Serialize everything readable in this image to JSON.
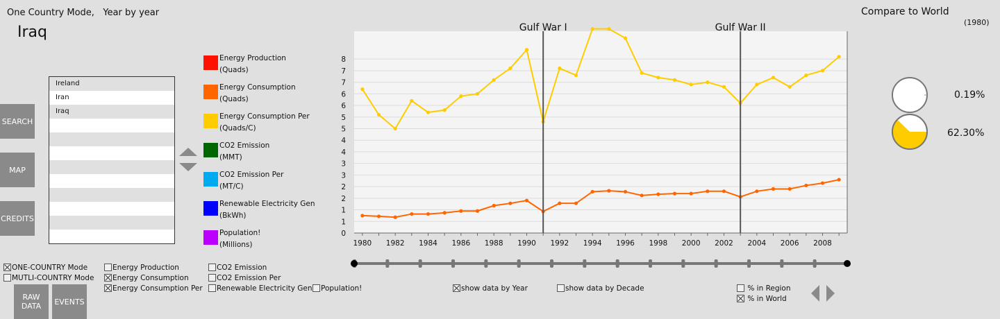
{
  "header": {
    "mode": "One Country Mode,",
    "timescale": "Year by year",
    "country": "Iraq"
  },
  "nav": {
    "search": "SEARCH",
    "map": "MAP",
    "credits": "CREDITS",
    "raw_data": "RAW DATA",
    "events": "EVENTS"
  },
  "country_list": [
    "Ireland",
    "Iran",
    "Iraq",
    "",
    "",
    "",
    "",
    "",
    "",
    "",
    "",
    ""
  ],
  "legend": [
    {
      "label": "Energy Production",
      "unit": "(Quads)",
      "color": "#ff1100"
    },
    {
      "label": "Energy Consumption",
      "unit": "(Quads)",
      "color": "#ff6600"
    },
    {
      "label": "Energy Consumption Per",
      "unit": "(Quads/C)",
      "color": "#ffcc00"
    },
    {
      "label": "CO2 Emission",
      "unit": "(MMT)",
      "color": "#006600"
    },
    {
      "label": "CO2 Emission Per",
      "unit": "(MT/C)",
      "color": "#00aaee"
    },
    {
      "label": "Renewable Electricity Gen",
      "unit": "(BkWh)",
      "color": "#0000ff"
    },
    {
      "label": "Population!",
      "unit": "(Millions)",
      "color": "#bb00ff"
    }
  ],
  "events": [
    "Gulf War I",
    "Gulf War II"
  ],
  "chart_data": {
    "type": "line",
    "x": [
      1980,
      1981,
      1982,
      1983,
      1984,
      1985,
      1986,
      1987,
      1988,
      1989,
      1990,
      1991,
      1992,
      1993,
      1994,
      1995,
      1996,
      1997,
      1998,
      1999,
      2000,
      2001,
      2002,
      2003,
      2004,
      2005,
      2006,
      2007,
      2008,
      2009
    ],
    "x_tick_labels": [
      "1980",
      "1982",
      "1984",
      "1986",
      "1988",
      "1990",
      "1992",
      "1994",
      "1996",
      "1998",
      "2000",
      "2002",
      "2004",
      "2006",
      "2008"
    ],
    "y_tick_labels": [
      "0",
      "1",
      "1",
      "2",
      "2",
      "3",
      "3",
      "4",
      "4",
      "5",
      "5",
      "6",
      "6",
      "7",
      "7",
      "8"
    ],
    "xlim": [
      1979.5,
      2009.5
    ],
    "ylim": [
      0,
      8.7
    ],
    "grid": true,
    "series": [
      {
        "name": "Energy Consumption Per",
        "color": "#ffcc00",
        "values": [
          6.2,
          5.1,
          4.5,
          5.7,
          5.2,
          5.3,
          5.9,
          6.0,
          6.6,
          7.1,
          7.9,
          4.8,
          7.1,
          6.8,
          8.8,
          8.8,
          8.4,
          6.9,
          6.7,
          6.6,
          6.4,
          6.5,
          6.3,
          5.6,
          6.4,
          6.7,
          6.3,
          6.8,
          7.0,
          7.6
        ]
      },
      {
        "name": "Energy Consumption",
        "color": "#ff6600",
        "values": [
          0.75,
          0.72,
          0.68,
          0.82,
          0.82,
          0.87,
          0.95,
          0.95,
          1.18,
          1.28,
          1.4,
          0.93,
          1.28,
          1.28,
          1.78,
          1.82,
          1.78,
          1.62,
          1.67,
          1.7,
          1.7,
          1.8,
          1.8,
          1.56,
          1.8,
          1.9,
          1.9,
          2.05,
          2.15,
          2.3
        ]
      }
    ],
    "event_markers": [
      {
        "label": "Gulf War I",
        "x": 1991
      },
      {
        "label": "Gulf War II",
        "x": 2003
      }
    ]
  },
  "options": {
    "one_country": "ONE-COUNTRY Mode",
    "multi_country": "MUTLI-COUNTRY Mode",
    "energy_production": "Energy Production",
    "energy_consumption": "Energy Consumption",
    "energy_consumption_per": "Energy Consumption Per",
    "co2_emission": "CO2 Emission",
    "co2_emission_per": "CO2 Emission Per",
    "renewable": "Renewable Electricity Gen",
    "population": "Population!",
    "by_year": "show data by Year",
    "by_decade": "show data by Decade",
    "pct_region": "% in Region",
    "pct_world": "% in World"
  },
  "compare": {
    "title": "Compare to World",
    "year": "(1980)",
    "pie1_value": "0.19%",
    "pie1_fraction": 0.0019,
    "pie2_value": "62.30%",
    "pie2_fraction": 0.623,
    "pie2_color": "#ffcc00"
  },
  "timeline": {
    "ticks": 15
  }
}
